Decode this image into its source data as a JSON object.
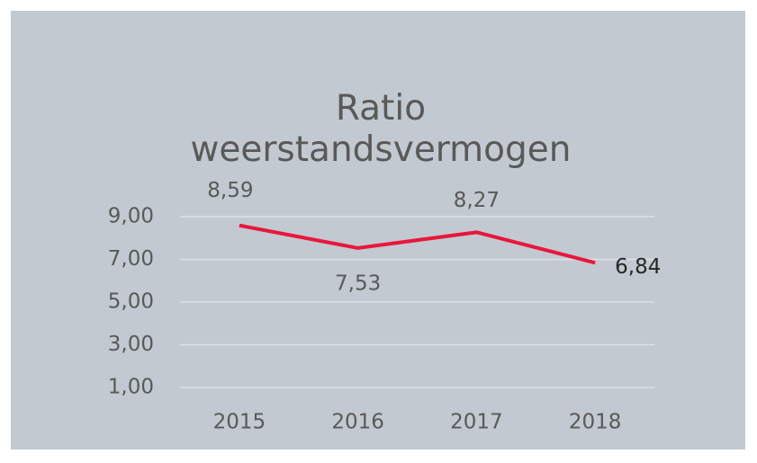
{
  "chart_data": {
    "type": "line",
    "title": "Ratio weerstandsvermogen",
    "categories": [
      "2015",
      "2016",
      "2017",
      "2018"
    ],
    "series": [
      {
        "name": "Ratio weerstandsvermogen",
        "color": "#e8173c",
        "values": [
          8.59,
          7.53,
          8.27,
          6.84
        ],
        "value_labels": [
          "8,59",
          "7,53",
          "8,27",
          "6,84"
        ]
      }
    ],
    "ylim": [
      1,
      10
    ],
    "yticks": [
      {
        "value": 1,
        "label": "1,00"
      },
      {
        "value": 3,
        "label": "3,00"
      },
      {
        "value": 5,
        "label": "5,00"
      },
      {
        "value": 7,
        "label": "7,00"
      },
      {
        "value": 9,
        "label": "9,00"
      }
    ],
    "grid": true
  }
}
